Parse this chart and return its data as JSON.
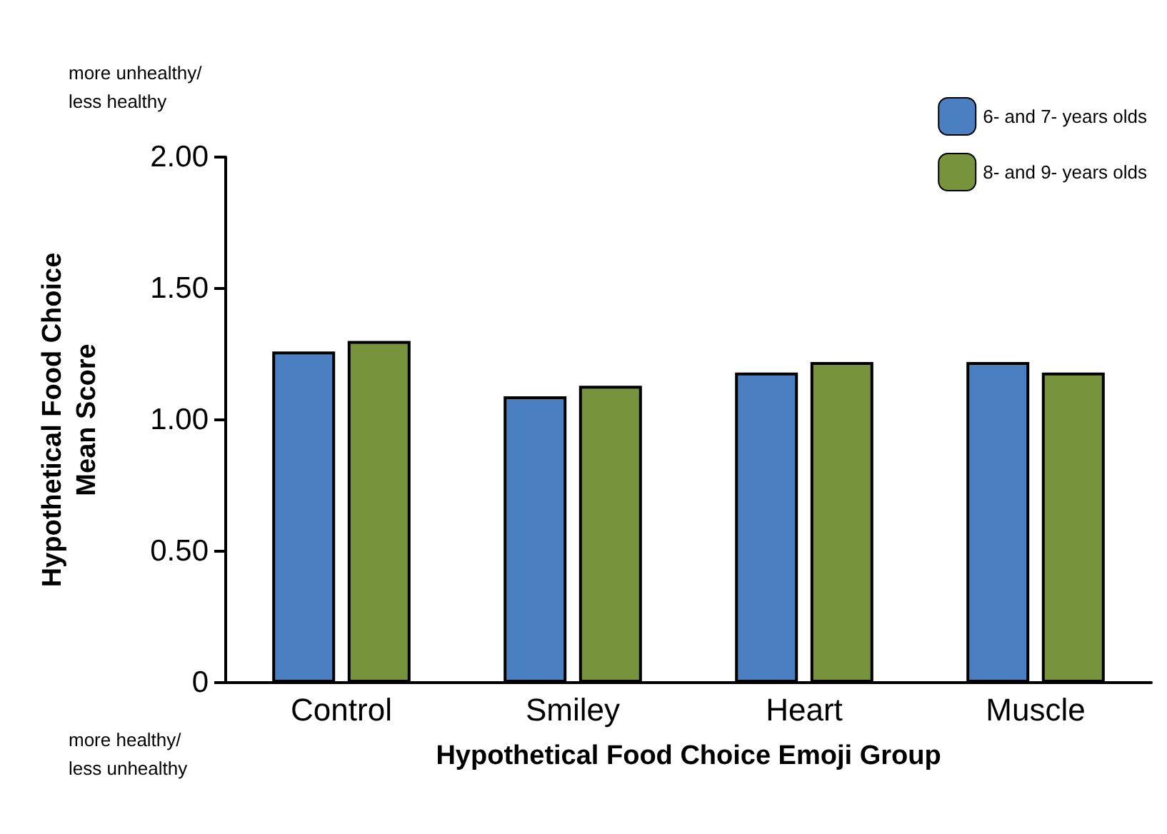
{
  "chart_data": {
    "type": "bar",
    "ylabel": "Hypothetical Food Choice\nMean Score",
    "xlabel": "Hypothetical Food Choice Emoji Group",
    "categories": [
      "Control",
      "Smiley",
      "Heart",
      "Muscle"
    ],
    "series": [
      {
        "name": "6- and 7- years olds",
        "color": "#4a7fc1",
        "values": [
          1.26,
          1.09,
          1.18,
          1.22
        ]
      },
      {
        "name": "8- and 9- years olds",
        "color": "#77943d",
        "values": [
          1.3,
          1.13,
          1.22,
          1.18
        ]
      }
    ],
    "ylim": [
      0,
      2
    ],
    "yticks": [
      0,
      {
        "value": 0.5,
        "label": "0.50"
      },
      {
        "value": 1,
        "label": "1.00"
      },
      {
        "value": 1.5,
        "label": "1.50"
      },
      {
        "value": 2,
        "label": "2.00"
      }
    ],
    "grid": false,
    "legend": "top right",
    "annotations": [
      "more unhealthy/\nless healthy",
      "more healthy/\nless unhealthy"
    ]
  }
}
